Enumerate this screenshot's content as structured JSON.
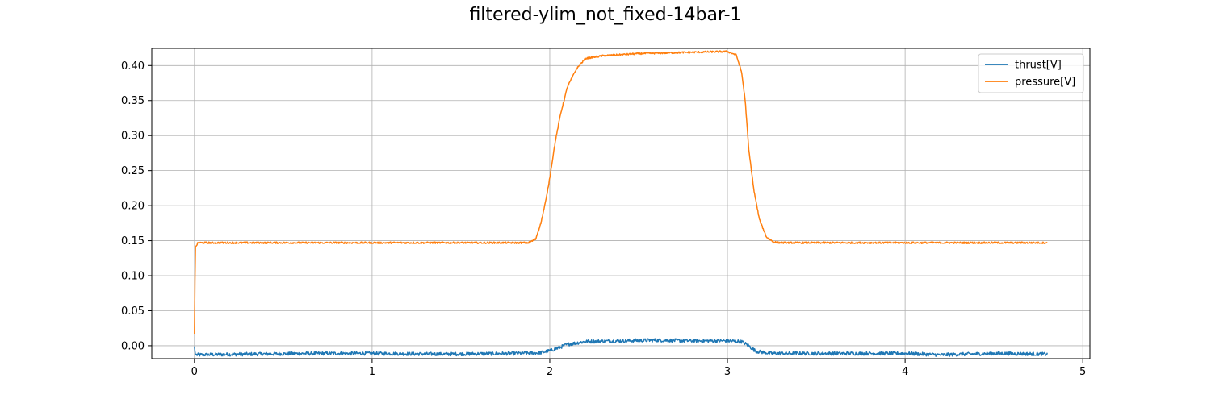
{
  "chart_data": {
    "type": "line",
    "title": "filtered-ylim_not_fixed-14bar-1",
    "xlabel": "",
    "ylabel": "",
    "xlim": [
      -0.24,
      5.04
    ],
    "ylim": [
      -0.0185,
      0.4245
    ],
    "xticks": [
      0,
      1,
      2,
      3,
      4,
      5
    ],
    "xtick_labels": [
      "0",
      "1",
      "2",
      "3",
      "4",
      "5"
    ],
    "yticks": [
      0.0,
      0.05,
      0.1,
      0.15,
      0.2,
      0.25,
      0.3,
      0.35,
      0.4
    ],
    "ytick_labels": [
      "0.00",
      "0.05",
      "0.10",
      "0.15",
      "0.20",
      "0.25",
      "0.30",
      "0.35",
      "0.40"
    ],
    "grid": true,
    "legend_position": "top-right",
    "series": [
      {
        "name": "thrust[V]",
        "color": "#1f77b4",
        "x": [
          0,
          0.005,
          0.02,
          0.3,
          0.7,
          1.0,
          1.4,
          1.8,
          1.95,
          2.0,
          2.05,
          2.1,
          2.2,
          2.4,
          2.6,
          2.8,
          3.0,
          3.08,
          3.12,
          3.16,
          3.25,
          3.5,
          3.8,
          4.0,
          4.2,
          4.5,
          4.8
        ],
        "values": [
          -0.001,
          -0.013,
          -0.013,
          -0.012,
          -0.011,
          -0.011,
          -0.012,
          -0.011,
          -0.01,
          -0.007,
          -0.003,
          0.002,
          0.006,
          0.007,
          0.008,
          0.007,
          0.007,
          0.006,
          0.0,
          -0.008,
          -0.011,
          -0.011,
          -0.011,
          -0.011,
          -0.013,
          -0.011,
          -0.012
        ],
        "noise": 0.0025
      },
      {
        "name": "pressure[V]",
        "color": "#ff7f0e",
        "x": [
          0,
          0.005,
          0.02,
          0.5,
          1.0,
          1.5,
          1.88,
          1.92,
          1.95,
          1.98,
          2.0,
          2.03,
          2.06,
          2.1,
          2.15,
          2.2,
          2.3,
          2.5,
          2.8,
          3.0,
          3.05,
          3.08,
          3.1,
          3.12,
          3.15,
          3.18,
          3.22,
          3.26,
          3.3,
          3.5,
          4.0,
          4.5,
          4.8
        ],
        "values": [
          0.017,
          0.14,
          0.147,
          0.147,
          0.147,
          0.147,
          0.147,
          0.152,
          0.175,
          0.21,
          0.24,
          0.29,
          0.33,
          0.37,
          0.395,
          0.41,
          0.414,
          0.417,
          0.419,
          0.42,
          0.415,
          0.39,
          0.35,
          0.28,
          0.22,
          0.18,
          0.155,
          0.148,
          0.147,
          0.147,
          0.147,
          0.147,
          0.147
        ],
        "noise": 0.0012
      }
    ]
  }
}
